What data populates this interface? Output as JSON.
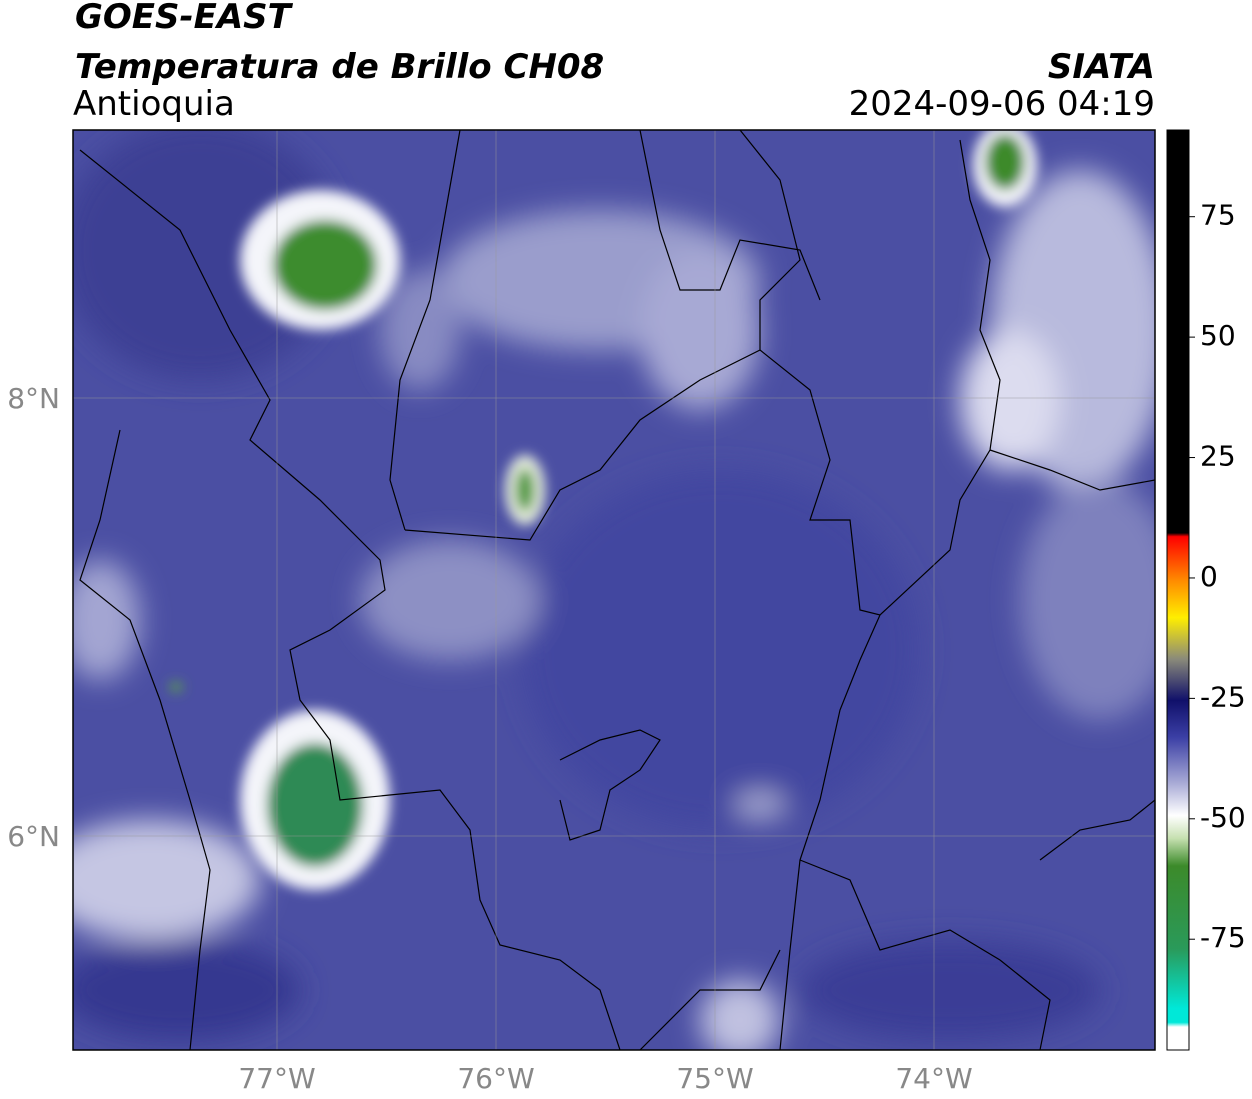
{
  "header": {
    "title": "GOES-EAST",
    "subtitle": "Temperatura de Brillo CH08",
    "region": "Antioquia",
    "source": "SIATA",
    "timestamp": "2024-09-06 04:19"
  },
  "map": {
    "lat_labels": [
      "8°N",
      "6°N"
    ],
    "lon_labels": [
      "77°W",
      "76°W",
      "75°W",
      "74°W"
    ]
  },
  "colorbar": {
    "range": [
      -98,
      93
    ],
    "ticks": [
      75,
      50,
      25,
      0,
      -25,
      -50,
      -75
    ]
  }
}
